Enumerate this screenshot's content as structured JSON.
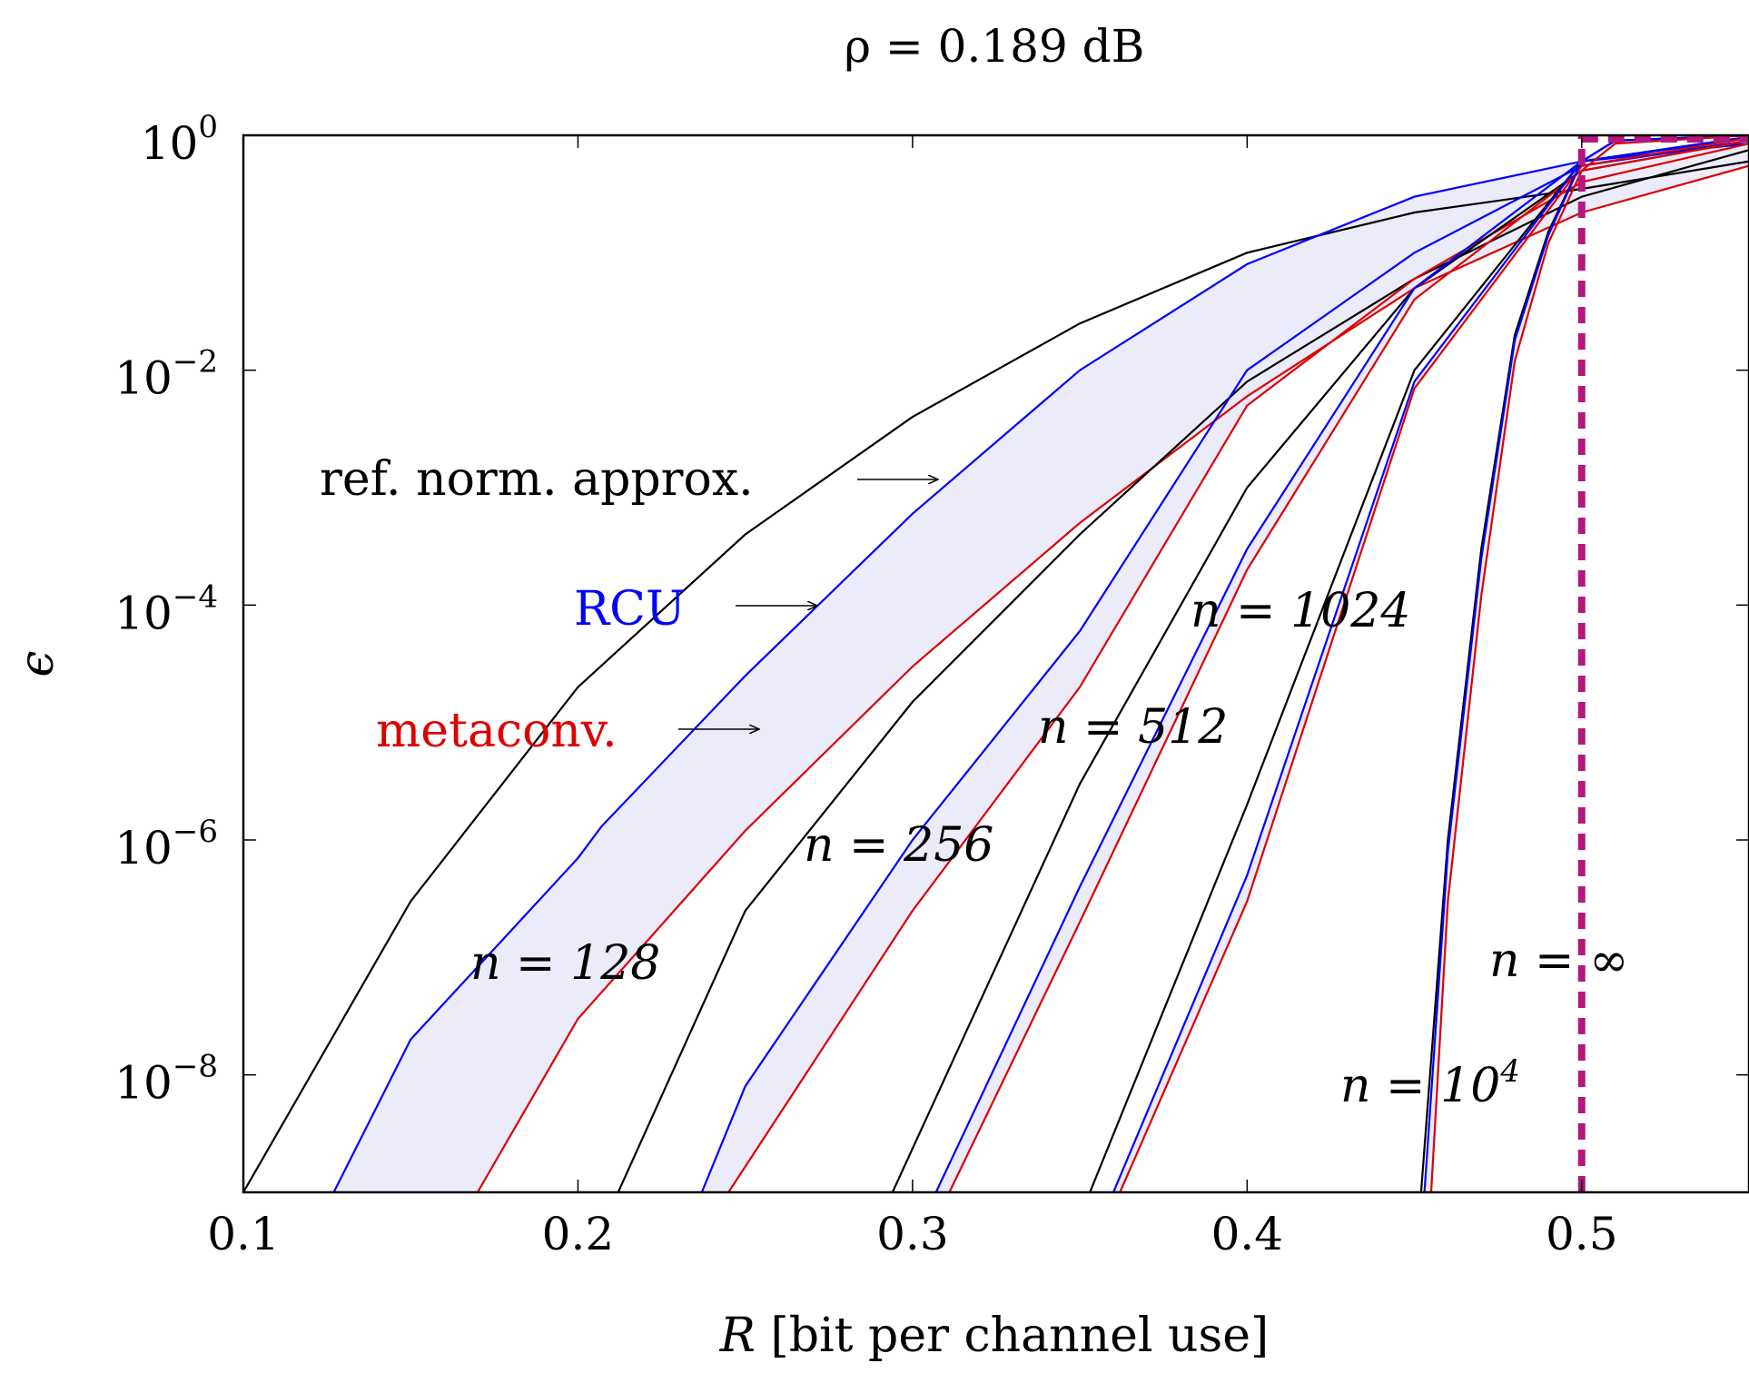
{
  "chart_data": {
    "type": "line",
    "title": "ρ = 0.189 dB",
    "xlabel": "R [bit per channel use]",
    "ylabel": "ϵ",
    "xlim": [
      0.1,
      0.55
    ],
    "ylim_log10": [
      -9,
      0
    ],
    "y_scale": "log",
    "x_ticks": [
      "0.1",
      "0.2",
      "0.3",
      "0.4",
      "0.5"
    ],
    "y_ticks": [
      {
        "base": "10",
        "exp": "0",
        "value": 1
      },
      {
        "base": "10",
        "exp": "−2",
        "value": 0.01
      },
      {
        "base": "10",
        "exp": "−4",
        "value": 0.0001
      },
      {
        "base": "10",
        "exp": "−6",
        "value": 1e-06
      },
      {
        "base": "10",
        "exp": "−8",
        "value": 1e-08
      }
    ],
    "colors": {
      "ref": "#000000",
      "rcu": "#0000ff",
      "meta": "#dd0000",
      "limit": "#b5177e",
      "band": "#ebebfa"
    },
    "series": [
      {
        "name": "ref. norm. approx.",
        "n": "128",
        "kind": "ref",
        "points": [
          [
            0.1,
            1e-09
          ],
          [
            0.15,
            3e-07
          ],
          [
            0.2,
            2e-05
          ],
          [
            0.25,
            0.0004
          ],
          [
            0.3,
            0.004
          ],
          [
            0.35,
            0.025
          ],
          [
            0.4,
            0.1
          ],
          [
            0.45,
            0.22
          ],
          [
            0.5,
            0.35
          ],
          [
            0.55,
            0.6
          ]
        ]
      },
      {
        "name": "RCU",
        "n": "128",
        "kind": "rcu",
        "points": [
          [
            0.127,
            1e-09
          ],
          [
            0.15,
            2e-08
          ],
          [
            0.2,
            7e-07
          ],
          [
            0.207,
            1.3e-06
          ],
          [
            0.25,
            2.5e-05
          ],
          [
            0.3,
            0.0006
          ],
          [
            0.35,
            0.01
          ],
          [
            0.4,
            0.08
          ],
          [
            0.45,
            0.3
          ],
          [
            0.5,
            0.6
          ],
          [
            0.55,
            0.85
          ]
        ]
      },
      {
        "name": "metaconv.",
        "n": "128",
        "kind": "meta",
        "points": [
          [
            0.17,
            1e-09
          ],
          [
            0.2,
            3e-08
          ],
          [
            0.25,
            1.2e-06
          ],
          [
            0.3,
            3e-05
          ],
          [
            0.35,
            0.0005
          ],
          [
            0.4,
            0.006
          ],
          [
            0.45,
            0.05
          ],
          [
            0.5,
            0.22
          ],
          [
            0.55,
            0.55
          ]
        ]
      },
      {
        "name": "ref. norm. approx.",
        "n": "256",
        "kind": "ref",
        "points": [
          [
            0.212,
            1e-09
          ],
          [
            0.25,
            2.5e-07
          ],
          [
            0.3,
            1.5e-05
          ],
          [
            0.35,
            0.0004
          ],
          [
            0.4,
            0.008
          ],
          [
            0.45,
            0.06
          ],
          [
            0.5,
            0.3
          ],
          [
            0.55,
            0.75
          ]
        ]
      },
      {
        "name": "RCU",
        "n": "256",
        "kind": "rcu",
        "points": [
          [
            0.237,
            1e-09
          ],
          [
            0.25,
            8e-09
          ],
          [
            0.3,
            1e-06
          ],
          [
            0.35,
            6e-05
          ],
          [
            0.4,
            0.01
          ],
          [
            0.45,
            0.1
          ],
          [
            0.5,
            0.55
          ],
          [
            0.55,
            0.9
          ]
        ]
      },
      {
        "name": "metaconv.",
        "n": "256",
        "kind": "meta",
        "points": [
          [
            0.245,
            1e-09
          ],
          [
            0.3,
            2.5e-07
          ],
          [
            0.35,
            2e-05
          ],
          [
            0.4,
            0.005
          ],
          [
            0.45,
            0.06
          ],
          [
            0.5,
            0.4
          ],
          [
            0.55,
            0.85
          ]
        ]
      },
      {
        "name": "ref. norm. approx.",
        "n": "512",
        "kind": "ref",
        "points": [
          [
            0.294,
            1e-09
          ],
          [
            0.35,
            3e-06
          ],
          [
            0.4,
            0.001
          ],
          [
            0.45,
            0.05
          ],
          [
            0.5,
            0.5
          ],
          [
            0.55,
            0.9
          ]
        ]
      },
      {
        "name": "RCU",
        "n": "512",
        "kind": "rcu",
        "points": [
          [
            0.307,
            1e-09
          ],
          [
            0.35,
            4e-07
          ],
          [
            0.4,
            0.0003
          ],
          [
            0.45,
            0.05
          ],
          [
            0.5,
            0.6
          ],
          [
            0.55,
            0.95
          ]
        ]
      },
      {
        "name": "metaconv.",
        "n": "512",
        "kind": "meta",
        "points": [
          [
            0.311,
            1e-09
          ],
          [
            0.35,
            2e-07
          ],
          [
            0.4,
            0.0002
          ],
          [
            0.45,
            0.04
          ],
          [
            0.5,
            0.5
          ],
          [
            0.55,
            0.9
          ]
        ]
      },
      {
        "name": "ref. norm. approx.",
        "n": "1024",
        "kind": "ref",
        "points": [
          [
            0.353,
            1e-09
          ],
          [
            0.4,
            2e-06
          ],
          [
            0.45,
            0.01
          ],
          [
            0.5,
            0.6
          ],
          [
            0.55,
            0.97
          ]
        ]
      },
      {
        "name": "RCU",
        "n": "1024",
        "kind": "rcu",
        "points": [
          [
            0.36,
            1e-09
          ],
          [
            0.4,
            5e-07
          ],
          [
            0.45,
            0.008
          ],
          [
            0.5,
            0.6
          ],
          [
            0.55,
            0.97
          ]
        ]
      },
      {
        "name": "metaconv.",
        "n": "1024",
        "kind": "meta",
        "points": [
          [
            0.362,
            1e-09
          ],
          [
            0.4,
            3e-07
          ],
          [
            0.45,
            0.007
          ],
          [
            0.5,
            0.55
          ],
          [
            0.55,
            0.95
          ]
        ]
      },
      {
        "name": "ref. norm. approx.",
        "n": "10^4",
        "kind": "ref",
        "points": [
          [
            0.452,
            1e-09
          ],
          [
            0.46,
            1e-06
          ],
          [
            0.47,
            0.0003
          ],
          [
            0.48,
            0.02
          ],
          [
            0.49,
            0.15
          ],
          [
            0.5,
            0.6
          ],
          [
            0.51,
            0.9
          ],
          [
            0.55,
            1
          ]
        ]
      },
      {
        "name": "RCU",
        "n": "10^4",
        "kind": "rcu",
        "points": [
          [
            0.453,
            1e-09
          ],
          [
            0.46,
            8e-07
          ],
          [
            0.47,
            0.00025
          ],
          [
            0.48,
            0.018
          ],
          [
            0.49,
            0.14
          ],
          [
            0.5,
            0.6
          ],
          [
            0.51,
            0.9
          ],
          [
            0.55,
            1
          ]
        ]
      },
      {
        "name": "metaconv.",
        "n": "10^4",
        "kind": "meta",
        "points": [
          [
            0.455,
            1e-09
          ],
          [
            0.46,
            3e-07
          ],
          [
            0.47,
            0.00012
          ],
          [
            0.48,
            0.012
          ],
          [
            0.49,
            0.12
          ],
          [
            0.5,
            0.5
          ],
          [
            0.51,
            0.85
          ],
          [
            0.55,
            1
          ]
        ]
      }
    ],
    "capacity": {
      "label": "n = ∞",
      "x": 0.5
    },
    "annotations": {
      "ref": "ref. norm. approx.",
      "rcu": "RCU",
      "meta": "metaconv.",
      "n128": "n = 128",
      "n256": "n = 256",
      "n512": "n = 512",
      "n1024": "n = 1024",
      "n1e4_base": "n = 10",
      "n1e4_exp": "4",
      "ninf": "n = ∞"
    }
  }
}
